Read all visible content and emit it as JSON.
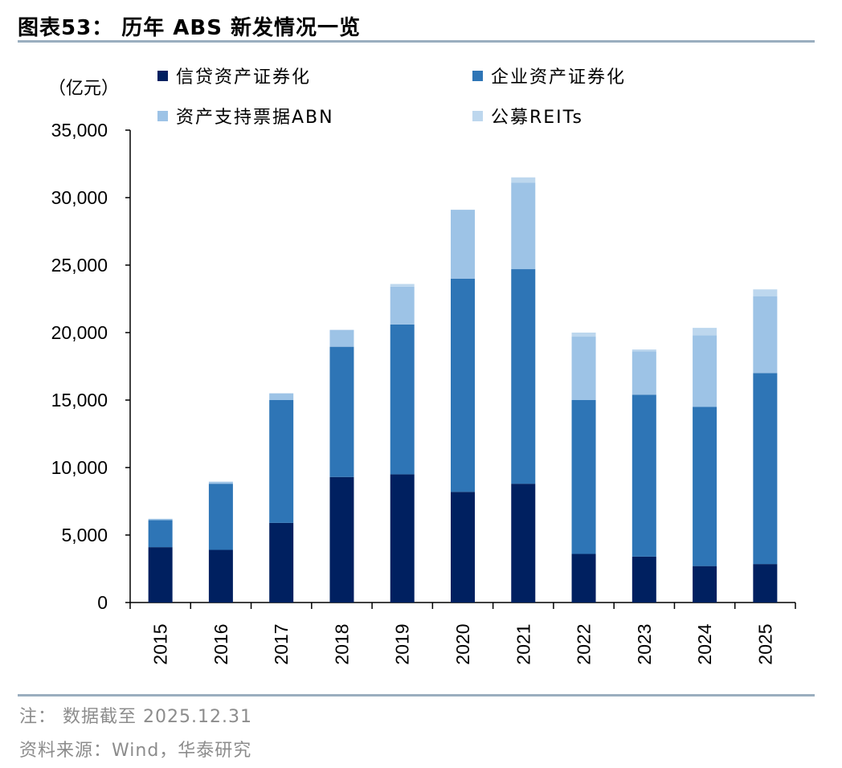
{
  "title": "图表53：  历年 ABS 新发情况一览",
  "unit_label": "（亿元）",
  "colors": {
    "credit_abs": "#002060",
    "corporate_abs": "#2E75B6",
    "abn": "#9DC3E6",
    "reits": "#BDD7EE",
    "rule": "#9aaebf"
  },
  "chart_data": {
    "type": "bar",
    "stacked": true,
    "title": "历年 ABS 新发情况一览",
    "ylabel": "（亿元）",
    "xlabel": "",
    "ylim": [
      0,
      35000
    ],
    "yticks": [
      0,
      5000,
      10000,
      15000,
      20000,
      25000,
      30000,
      35000
    ],
    "ytick_labels": [
      "0",
      "5,000",
      "10,000",
      "15,000",
      "20,000",
      "25,000",
      "30,000",
      "35,000"
    ],
    "categories": [
      "2015",
      "2016",
      "2017",
      "2018",
      "2019",
      "2020",
      "2021",
      "2022",
      "2023",
      "2024",
      "2025"
    ],
    "legend_position": "top",
    "series": [
      {
        "name": "信贷资产证券化",
        "color": "#002060",
        "values": [
          4100,
          3900,
          5900,
          9300,
          9500,
          8200,
          8800,
          3600,
          3400,
          2700,
          2850
        ]
      },
      {
        "name": "企业资产证券化",
        "color": "#2E75B6",
        "values": [
          2000,
          4900,
          9100,
          9650,
          11100,
          15800,
          15900,
          11400,
          12000,
          11800,
          14150
        ]
      },
      {
        "name": "资产支持票据ABN",
        "color": "#9DC3E6",
        "values": [
          100,
          150,
          500,
          1250,
          2800,
          5100,
          6400,
          4700,
          3200,
          5300,
          5700
        ]
      },
      {
        "name": "公募REITs",
        "color": "#BDD7EE",
        "values": [
          0,
          0,
          0,
          0,
          200,
          0,
          400,
          300,
          150,
          550,
          500
        ]
      }
    ]
  },
  "notes": {
    "note": "注：  数据截至 2025.12.31",
    "source": "资料来源：Wind，华泰研究"
  }
}
